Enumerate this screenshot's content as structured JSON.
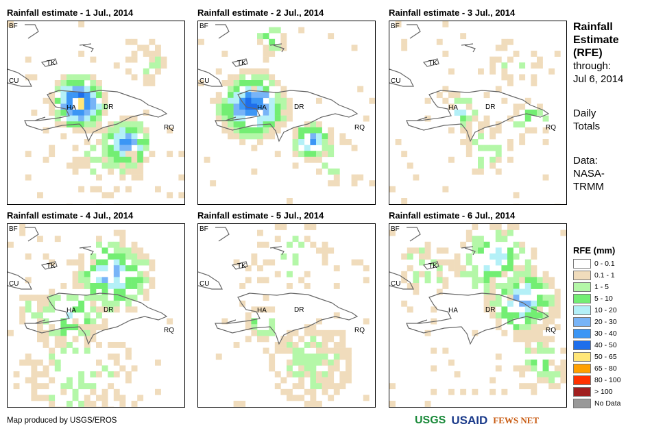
{
  "panels": [
    {
      "title": "Rainfall estimate - 1 Jul., 2014"
    },
    {
      "title": "Rainfall estimate - 2 Jul., 2014"
    },
    {
      "title": "Rainfall estimate - 3 Jul., 2014"
    },
    {
      "title": "Rainfall estimate - 4 Jul., 2014"
    },
    {
      "title": "Rainfall estimate - 5 Jul., 2014"
    },
    {
      "title": "Rainfall estimate - 6 Jul., 2014"
    }
  ],
  "map_labels": {
    "bf": "BF",
    "cu": "CU",
    "tk": "TK",
    "ha": "HA",
    "dr": "DR",
    "rq": "RQ"
  },
  "side": {
    "line1": "Rainfall",
    "line2": "Estimate",
    "line3": "(RFE)",
    "line4": "through:",
    "line5": "Jul 6, 2014",
    "line6": "Daily",
    "line7": "Totals",
    "line8": "Data:",
    "line9": "NASA-",
    "line10": "TRMM"
  },
  "legend": {
    "title": "RFE (mm)",
    "items": [
      {
        "label": "0 - 0.1",
        "color": "#ffffff"
      },
      {
        "label": "0.1 - 1",
        "color": "#f0dcbc"
      },
      {
        "label": "1 - 5",
        "color": "#b4f7a8"
      },
      {
        "label": "5 - 10",
        "color": "#73ee73"
      },
      {
        "label": "10 - 20",
        "color": "#b4f0f7"
      },
      {
        "label": "20 - 30",
        "color": "#78b4f7"
      },
      {
        "label": "30 - 40",
        "color": "#3c96f5"
      },
      {
        "label": "40 - 50",
        "color": "#1e6eeb"
      },
      {
        "label": "50 - 65",
        "color": "#ffe678"
      },
      {
        "label": "65 - 80",
        "color": "#ffa000"
      },
      {
        "label": "80 - 100",
        "color": "#ff3200"
      },
      {
        "label": "> 100",
        "color": "#a01e1e"
      },
      {
        "label": "No Data",
        "color": "#999999"
      }
    ]
  },
  "footer": "Map produced by USGS/EROS",
  "logos": {
    "usgs": "USGS",
    "usaid": "USAID",
    "fews": "FEWS NET"
  }
}
